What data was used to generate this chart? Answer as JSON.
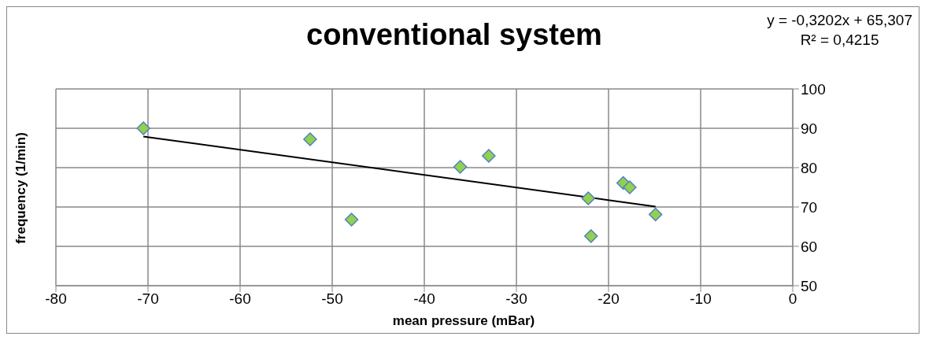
{
  "chart_data": {
    "type": "scatter",
    "title": "conventional system",
    "xlabel": "mean pressure (mBar)",
    "ylabel": "frequency (1/min)",
    "annotations": [
      "y = -0,3202x + 65,307",
      "R² = 0,4215"
    ],
    "series": [
      {
        "color": "#92d050",
        "marker": "diamond",
        "x": [
          -70.5,
          -52.4,
          -47.9,
          -36.1,
          -33.0,
          -22.2,
          -21.9,
          -18.4,
          -17.7,
          -14.9
        ],
        "values": [
          90.0,
          87.2,
          66.8,
          80.2,
          83.0,
          72.2,
          62.6,
          76.1,
          75.0,
          68.1
        ]
      },
      {
        "type": "line",
        "marker": "none",
        "color": "#000000",
        "x": [
          -70.5,
          -14.9
        ],
        "values": [
          87.9,
          70.1
        ]
      }
    ],
    "xlim": [
      -80,
      0
    ],
    "xticks": [
      -80,
      -70,
      -60,
      -50,
      -40,
      -30,
      -20,
      -10,
      0
    ],
    "ylim": [
      50,
      100
    ],
    "yticks": [
      50,
      60,
      70,
      80,
      90,
      100
    ],
    "grid": true,
    "legend": false,
    "line_style": "solid"
  }
}
